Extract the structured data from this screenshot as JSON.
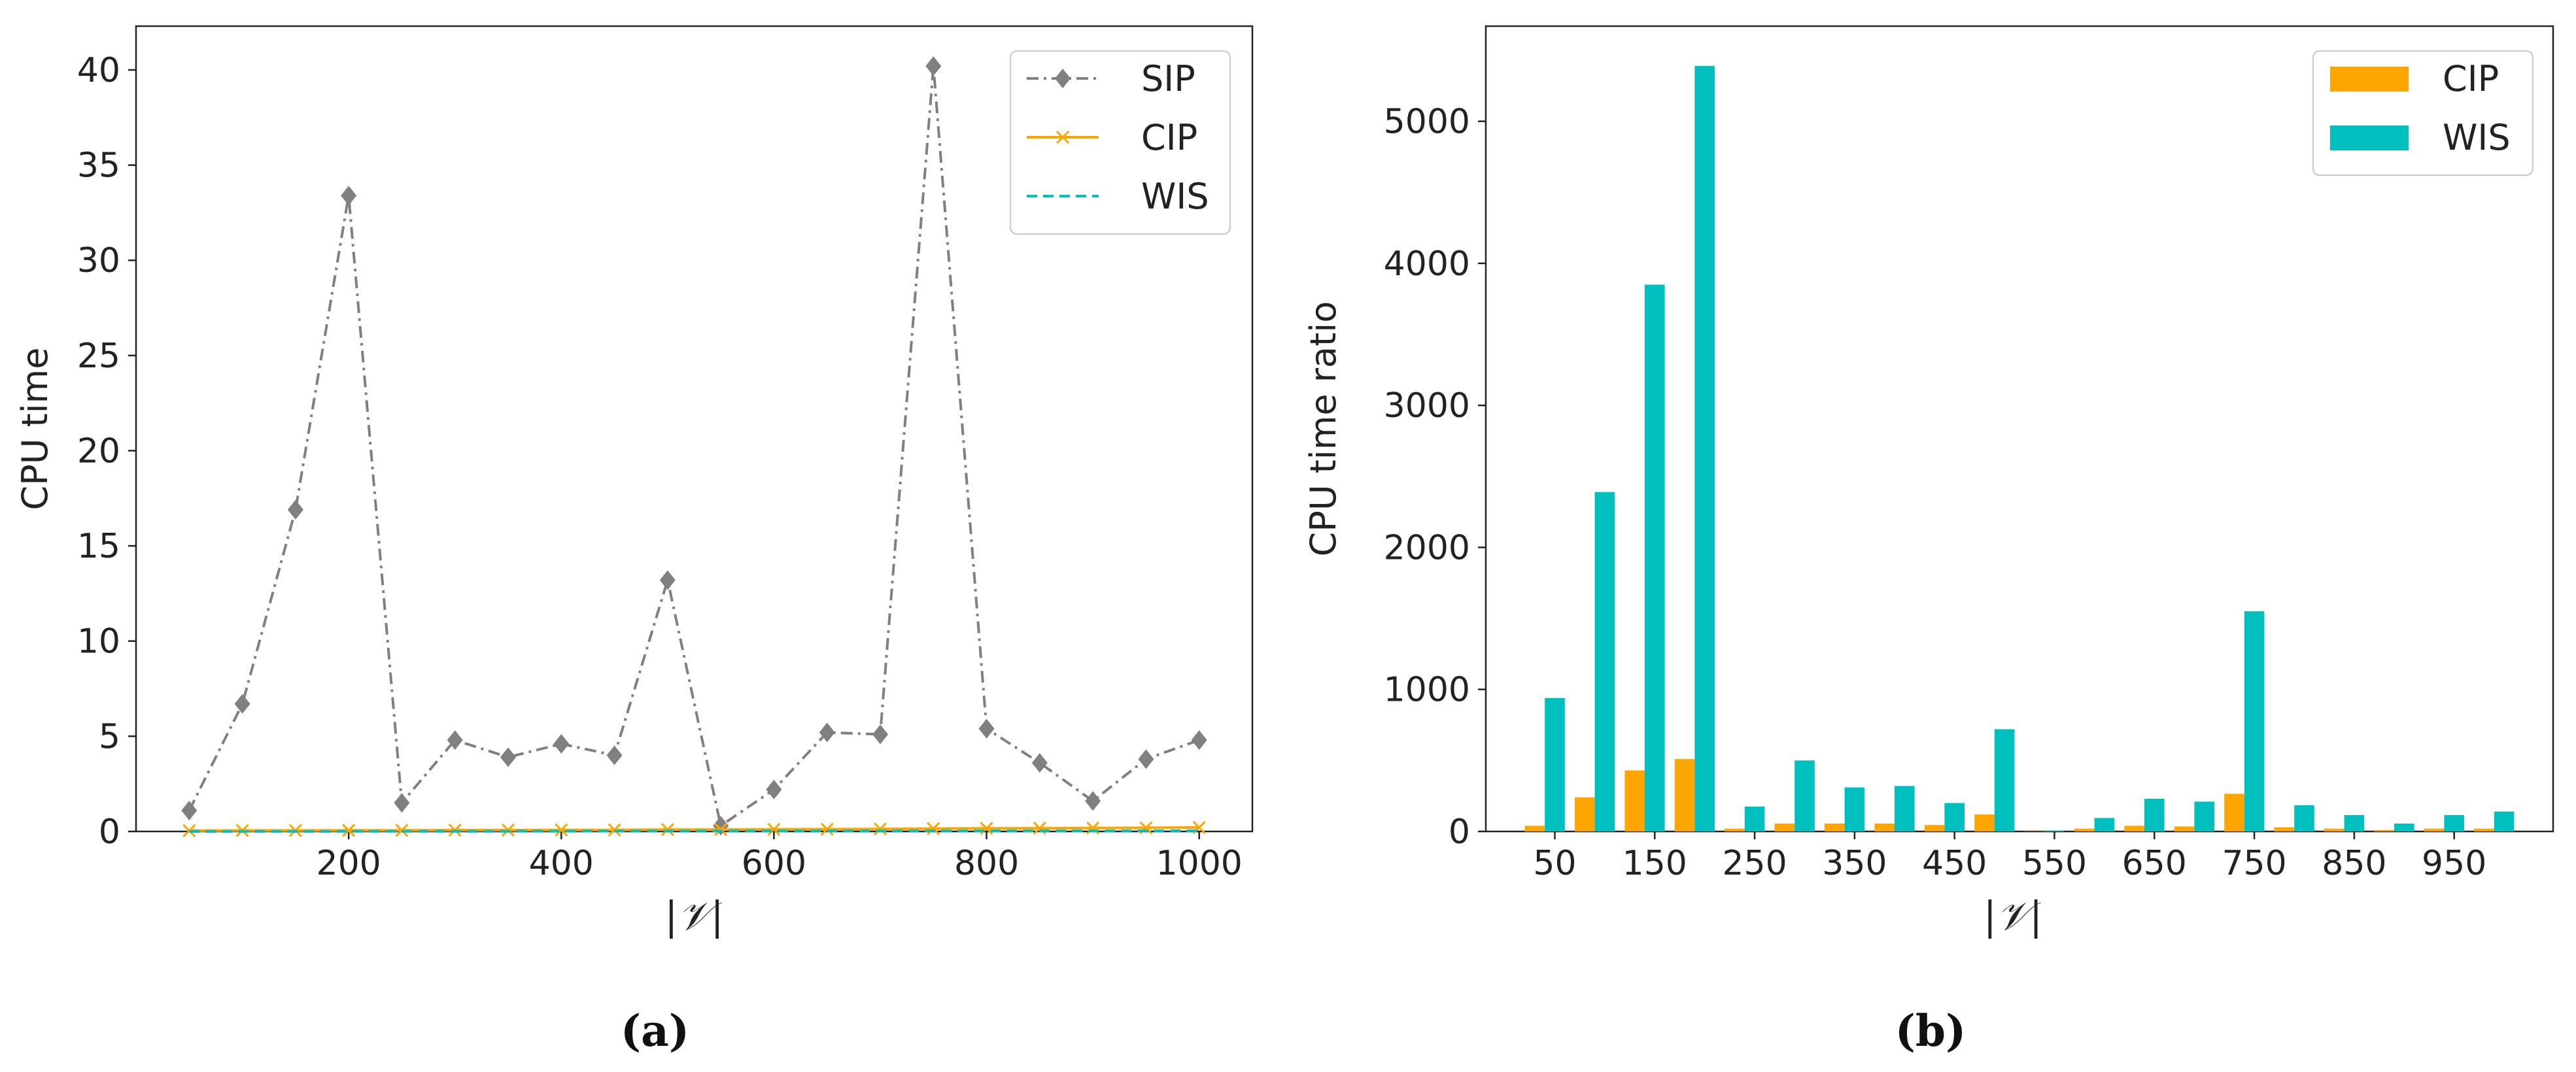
{
  "chart_data": [
    {
      "type": "line",
      "caption": "(a)",
      "xlabel": "|𝒱|",
      "ylabel": "CPU time",
      "xlim": [
        0,
        1050
      ],
      "ylim": [
        0,
        42.3
      ],
      "xticks": [
        200,
        400,
        600,
        800,
        1000
      ],
      "yticks": [
        0,
        5,
        10,
        15,
        20,
        25,
        30,
        35,
        40
      ],
      "legend_position": "top-right",
      "x": [
        50,
        100,
        150,
        200,
        250,
        300,
        350,
        400,
        450,
        500,
        550,
        600,
        650,
        700,
        750,
        800,
        850,
        900,
        950,
        1000
      ],
      "series": [
        {
          "name": "SIP",
          "color": "#808080",
          "style": "dashdot",
          "marker": "diamond",
          "values": [
            1.1,
            6.7,
            16.9,
            33.4,
            1.5,
            4.8,
            3.9,
            4.6,
            4.0,
            13.2,
            0.3,
            2.2,
            5.2,
            5.1,
            40.2,
            5.4,
            3.6,
            1.6,
            3.8,
            4.8
          ]
        },
        {
          "name": "CIP",
          "color": "#FFA500",
          "style": "solid",
          "marker": "x",
          "values": [
            0.04,
            0.05,
            0.05,
            0.06,
            0.06,
            0.07,
            0.07,
            0.08,
            0.08,
            0.1,
            0.1,
            0.11,
            0.12,
            0.13,
            0.15,
            0.16,
            0.17,
            0.18,
            0.19,
            0.21
          ]
        },
        {
          "name": "WIS",
          "color": "#00BFBF",
          "style": "dashed",
          "marker": "none",
          "values": [
            0.001,
            0.002,
            0.004,
            0.006,
            0.008,
            0.01,
            0.012,
            0.014,
            0.016,
            0.018,
            0.02,
            0.022,
            0.023,
            0.024,
            0.026,
            0.028,
            0.03,
            0.031,
            0.032,
            0.034
          ]
        }
      ]
    },
    {
      "type": "bar",
      "caption": "(b)",
      "xlabel": "|𝒱|",
      "ylabel": "CPU time ratio",
      "ylim": [
        0,
        5670
      ],
      "yticks": [
        0,
        1000,
        2000,
        3000,
        4000,
        5000
      ],
      "xtick_labels": [
        "50",
        "150",
        "250",
        "350",
        "450",
        "550",
        "650",
        "750",
        "850",
        "950"
      ],
      "legend_position": "top-right",
      "categories": [
        "50",
        "100",
        "150",
        "200",
        "250",
        "300",
        "350",
        "400",
        "450",
        "500",
        "550",
        "600",
        "650",
        "700",
        "750",
        "800",
        "850",
        "900",
        "950",
        "1000"
      ],
      "series": [
        {
          "name": "CIP",
          "color": "#FFA500",
          "values": [
            40,
            240,
            430,
            510,
            20,
            55,
            55,
            55,
            45,
            120,
            2,
            20,
            40,
            35,
            265,
            30,
            20,
            10,
            20,
            20
          ]
        },
        {
          "name": "WIS",
          "color": "#00BFBF",
          "values": [
            940,
            2390,
            3850,
            5390,
            175,
            500,
            310,
            320,
            200,
            720,
            5,
            95,
            230,
            210,
            1550,
            185,
            115,
            55,
            115,
            140
          ]
        }
      ]
    }
  ]
}
